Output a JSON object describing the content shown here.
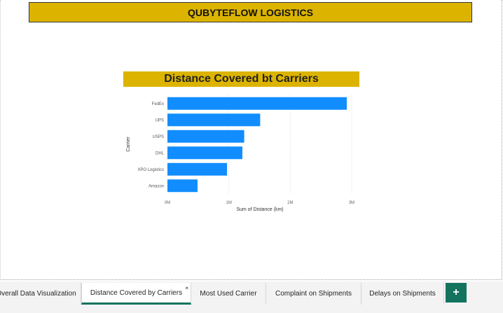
{
  "header": {
    "title": "QUBYTEFLOW LOGISTICS"
  },
  "chart_title": "Distance Covered bt Carriers",
  "chart_data": {
    "type": "bar",
    "orientation": "horizontal",
    "title": "Distance Covered bt Carriers",
    "xlabel": "Sum of Distance (km)",
    "ylabel": "Carrier",
    "categories": [
      "FedEx",
      "UPS",
      "USPS",
      "DHL",
      "XPO Logistics",
      "Amazon"
    ],
    "values": [
      2920000,
      1510000,
      1250000,
      1220000,
      970000,
      490000
    ],
    "xlim": [
      0,
      3000000
    ],
    "xticks": [
      {
        "value": 0,
        "label": "0M"
      },
      {
        "value": 1000000,
        "label": "1M"
      },
      {
        "value": 2000000,
        "label": "2M"
      },
      {
        "value": 3000000,
        "label": "3M"
      }
    ],
    "bar_color": "#118dff",
    "grid": true
  },
  "tabs": [
    {
      "label": "Overall Data Visualization",
      "active": false
    },
    {
      "label": "Distance Covered by Carriers",
      "active": true
    },
    {
      "label": "Most Used Carrier",
      "active": false
    },
    {
      "label": "Complaint on Shipments",
      "active": false
    },
    {
      "label": "Delays on Shipments",
      "active": false
    }
  ],
  "tab_close_symbol": "×",
  "add_tab_symbol": "+",
  "colors": {
    "banner": "#dcb400",
    "accent": "#13735f",
    "bar": "#118dff"
  }
}
